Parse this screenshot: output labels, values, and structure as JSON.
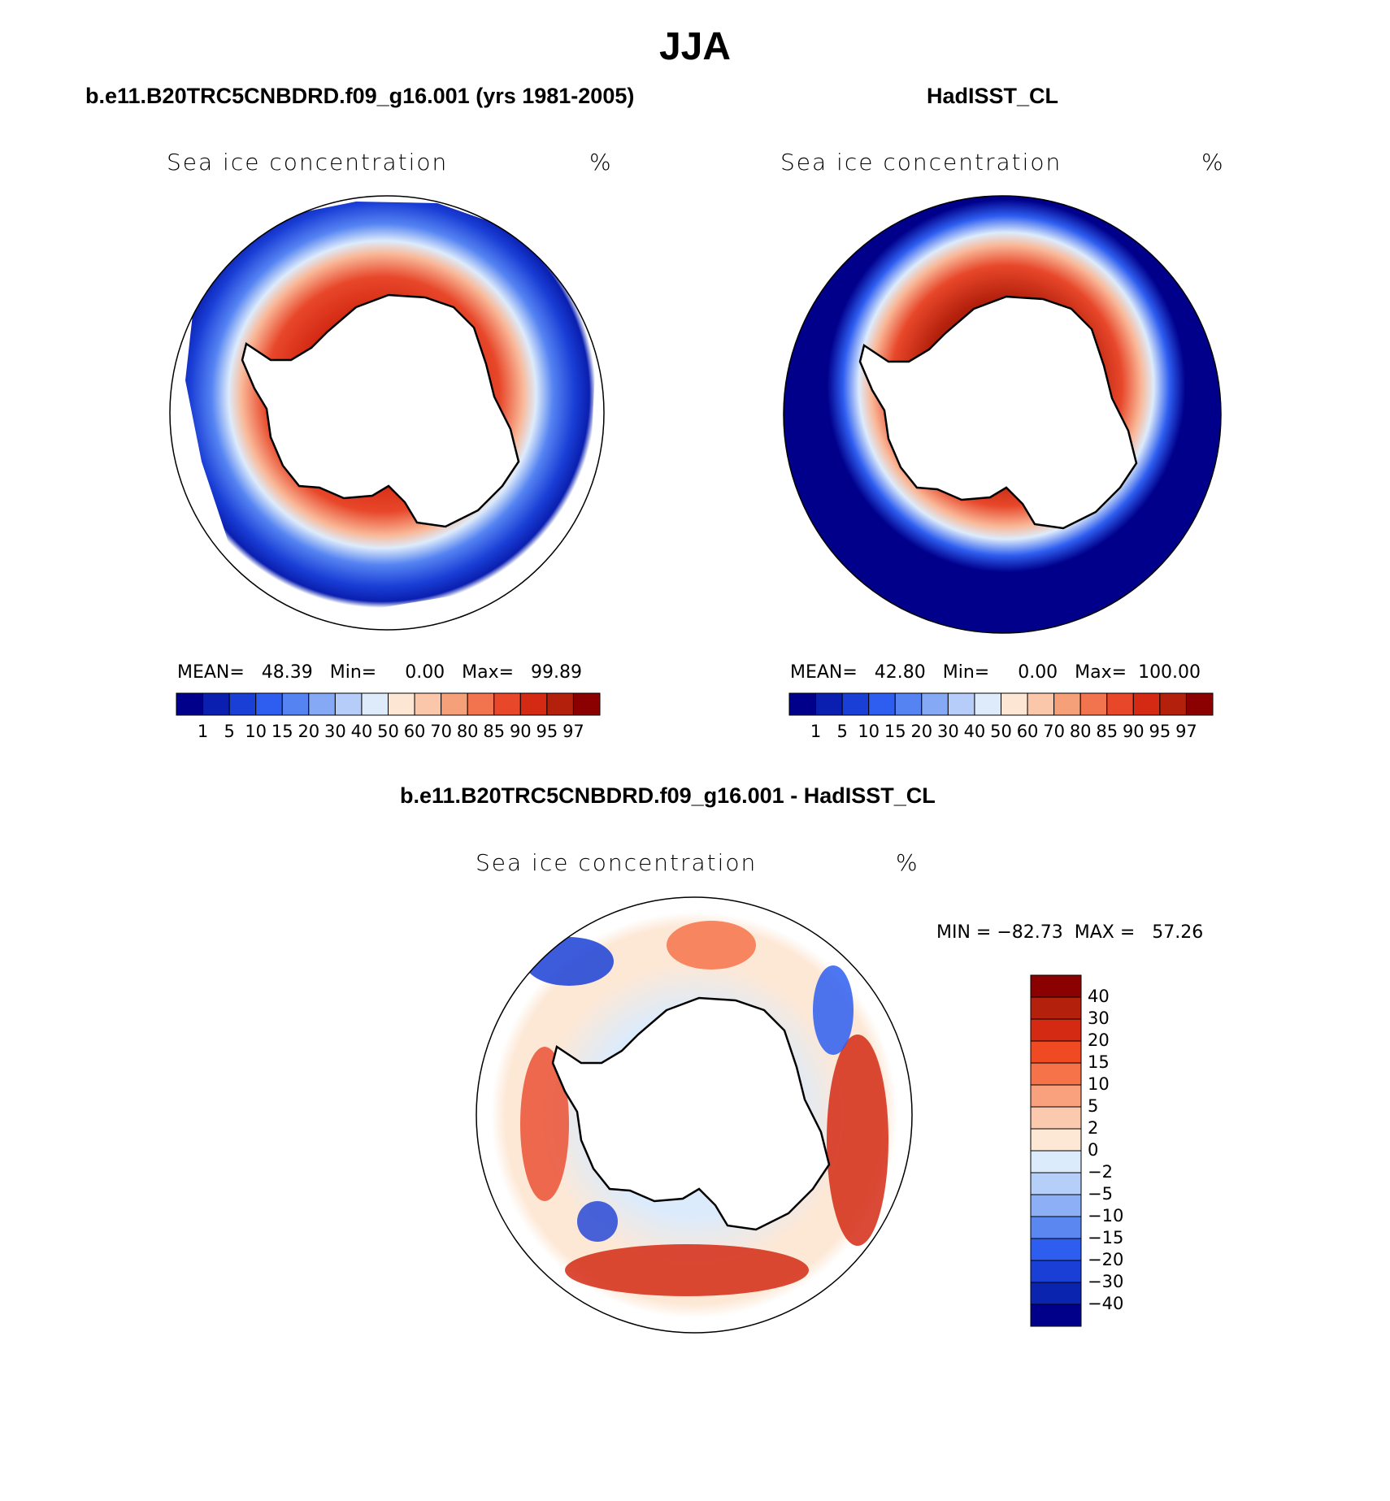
{
  "figure": {
    "title": "JJA"
  },
  "panels": [
    {
      "title": "b.e11.B20TRC5CNBDRD.f09_g16.001 (yrs 1981-2005)",
      "variable": "Sea ice concentration",
      "units": "%",
      "stats": "MEAN=   48.39   Min=     0.00   Max=   99.89"
    },
    {
      "title": "HadISST_CL",
      "variable": "Sea ice concentration",
      "units": "%",
      "stats": "MEAN=   42.80   Min=     0.00   Max=  100.00"
    }
  ],
  "diff_panel": {
    "title": "b.e11.B20TRC5CNBDRD.f09_g16.001 - HadISST_CL",
    "variable": "Sea ice concentration",
    "units": "%",
    "stats": "MIN = −82.73  MAX =   57.26"
  },
  "colorbar_abs": {
    "levels": [
      "1",
      "5",
      "10",
      "15",
      "20",
      "30",
      "40",
      "50",
      "60",
      "70",
      "80",
      "85",
      "90",
      "95",
      "97"
    ],
    "colors": [
      "#00008b",
      "#0a1fb0",
      "#1a3fd6",
      "#2e5ef0",
      "#5584f2",
      "#86a9f5",
      "#b5cdf8",
      "#ddebfb",
      "#fde6d4",
      "#fbc7aa",
      "#f6a07a",
      "#f2744e",
      "#e8472a",
      "#d42a14",
      "#b3200c",
      "#8b0000"
    ]
  },
  "colorbar_diff": {
    "levels": [
      "40",
      "30",
      "20",
      "15",
      "10",
      "5",
      "2",
      "0",
      "−2",
      "−5",
      "−10",
      "−15",
      "−20",
      "−30",
      "−40"
    ],
    "colors": [
      "#8b0000",
      "#b3200c",
      "#d42a14",
      "#f04a22",
      "#f6734a",
      "#f9a07c",
      "#fbc9ad",
      "#fde8d6",
      "#dcebfb",
      "#b6cff8",
      "#8daff5",
      "#5a87f0",
      "#2e5ef0",
      "#1a3fd6",
      "#0a24b0",
      "#00008b"
    ]
  }
}
